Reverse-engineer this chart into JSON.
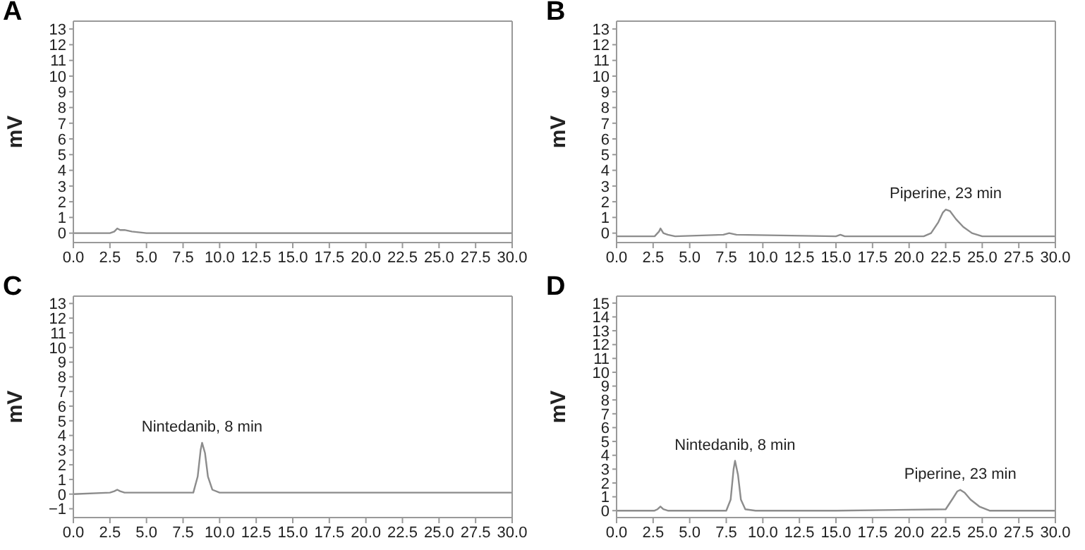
{
  "chart_data": [
    {
      "type": "line",
      "title": "A",
      "ylabel": "mV",
      "color": "#8c8c8c",
      "x": [
        0,
        2.5,
        2.8,
        3.0,
        3.2,
        3.5,
        4.0,
        5,
        8,
        10,
        15,
        20,
        25,
        30
      ],
      "values": [
        0.0,
        0.0,
        0.1,
        0.3,
        0.2,
        0.2,
        0.1,
        0.0,
        0.0,
        0.0,
        0.0,
        0.0,
        0.0,
        0.0
      ],
      "xlim": [
        0,
        30
      ],
      "xticks": [
        {
          "value": 0,
          "label": "0.0"
        },
        {
          "value": 2.5,
          "label": "2.5"
        },
        {
          "value": 5,
          "label": "5.0"
        },
        {
          "value": 7.5,
          "label": "7.5"
        },
        {
          "value": 10,
          "label": "10.0"
        },
        {
          "value": 12.5,
          "label": "12.5"
        },
        {
          "value": 15,
          "label": "15.0"
        },
        {
          "value": 17.5,
          "label": "17.5"
        },
        {
          "value": 20,
          "label": "20.0"
        },
        {
          "value": 22.5,
          "label": "22.5"
        },
        {
          "value": 25,
          "label": "25.0"
        },
        {
          "value": 27.5,
          "label": "27.5"
        },
        {
          "value": 30,
          "label": "30.0"
        }
      ],
      "ylim": [
        -0.6,
        13.5
      ],
      "yticks": [
        0,
        1,
        2,
        3,
        4,
        5,
        6,
        7,
        8,
        9,
        10,
        11,
        12,
        13
      ]
    },
    {
      "type": "line",
      "title": "B",
      "ylabel": "mV",
      "color": "#8c8c8c",
      "x": [
        0,
        2.6,
        2.9,
        3.0,
        3.2,
        3.5,
        4,
        7.3,
        7.7,
        8.2,
        15,
        15.3,
        15.6,
        21,
        21.5,
        22,
        22.3,
        22.5,
        22.8,
        23.2,
        23.7,
        24.3,
        25,
        30
      ],
      "values": [
        -0.2,
        -0.2,
        0.1,
        0.3,
        0.0,
        -0.1,
        -0.2,
        -0.1,
        0.0,
        -0.1,
        -0.2,
        -0.1,
        -0.2,
        -0.2,
        0.0,
        0.7,
        1.3,
        1.5,
        1.4,
        0.9,
        0.4,
        0.0,
        -0.2,
        -0.2
      ],
      "xlim": [
        0,
        30
      ],
      "xticks": [
        {
          "value": 0,
          "label": "0.0"
        },
        {
          "value": 2.5,
          "label": "2.5"
        },
        {
          "value": 5,
          "label": "5.0"
        },
        {
          "value": 7.5,
          "label": "7.5"
        },
        {
          "value": 10,
          "label": "10.0"
        },
        {
          "value": 12.5,
          "label": "12.5"
        },
        {
          "value": 15,
          "label": "15.0"
        },
        {
          "value": 17.5,
          "label": "17.5"
        },
        {
          "value": 20,
          "label": "20.0"
        },
        {
          "value": 22.5,
          "label": "22.5"
        },
        {
          "value": 25,
          "label": "25.0"
        },
        {
          "value": 27.5,
          "label": "27.5"
        },
        {
          "value": 30,
          "label": "30.0"
        }
      ],
      "ylim": [
        -0.6,
        13.5
      ],
      "yticks": [
        0,
        1,
        2,
        3,
        4,
        5,
        6,
        7,
        8,
        9,
        10,
        11,
        12,
        13
      ],
      "annotations": [
        {
          "text": "Piperine, 23 min",
          "x": 22.5,
          "y": 1.5
        }
      ]
    },
    {
      "type": "line",
      "title": "C",
      "ylabel": "mV",
      "color": "#8c8c8c",
      "x": [
        0,
        2.5,
        2.8,
        3.0,
        3.2,
        3.5,
        5,
        8.2,
        8.5,
        8.7,
        8.8,
        9.0,
        9.2,
        9.5,
        10,
        12,
        30
      ],
      "values": [
        0.0,
        0.1,
        0.2,
        0.3,
        0.2,
        0.1,
        0.1,
        0.1,
        1.2,
        3.0,
        3.5,
        2.8,
        1.2,
        0.3,
        0.1,
        0.1,
        0.1
      ],
      "xlim": [
        0,
        30
      ],
      "xticks": [
        {
          "value": 0,
          "label": "0.0"
        },
        {
          "value": 2.5,
          "label": "2.5"
        },
        {
          "value": 5,
          "label": "5.0"
        },
        {
          "value": 7.5,
          "label": "7.5"
        },
        {
          "value": 10,
          "label": "10.0"
        },
        {
          "value": 12.5,
          "label": "12.5"
        },
        {
          "value": 15,
          "label": "15.0"
        },
        {
          "value": 17.5,
          "label": "17.5"
        },
        {
          "value": 20,
          "label": "20.0"
        },
        {
          "value": 22.5,
          "label": "22.5"
        },
        {
          "value": 25,
          "label": "25.0"
        },
        {
          "value": 27.5,
          "label": "27.5"
        },
        {
          "value": 30,
          "label": "30.0"
        }
      ],
      "ylim": [
        -1.6,
        13.5
      ],
      "yticks": [
        {
          "value": -1,
          "label": "−1"
        },
        0,
        1,
        2,
        3,
        4,
        5,
        6,
        7,
        8,
        9,
        10,
        11,
        12,
        13
      ],
      "annotations": [
        {
          "text": "Nintedanib, 8 min",
          "x": 8.8,
          "y": 3.5
        }
      ]
    },
    {
      "type": "line",
      "title": "D",
      "ylabel": "mV",
      "color": "#8c8c8c",
      "x": [
        0,
        2.6,
        2.8,
        3.0,
        3.2,
        3.5,
        7.5,
        7.8,
        8.0,
        8.1,
        8.3,
        8.5,
        8.8,
        9.5,
        15,
        22.5,
        23,
        23.3,
        23.5,
        23.8,
        24.2,
        24.8,
        25.5,
        30
      ],
      "values": [
        0,
        0,
        0.1,
        0.3,
        0.1,
        0,
        0,
        0.8,
        3.0,
        3.6,
        2.6,
        0.8,
        0.1,
        0,
        0,
        0.1,
        0.9,
        1.4,
        1.5,
        1.3,
        0.8,
        0.3,
        0.0,
        0
      ],
      "xlim": [
        0,
        30
      ],
      "xticks": [
        {
          "value": 0,
          "label": "0.0"
        },
        {
          "value": 2.5,
          "label": "2.5"
        },
        {
          "value": 5,
          "label": "5.0"
        },
        {
          "value": 7.5,
          "label": "7.5"
        },
        {
          "value": 10,
          "label": "10.0"
        },
        {
          "value": 12.5,
          "label": "12.5"
        },
        {
          "value": 15,
          "label": "15.0"
        },
        {
          "value": 17.5,
          "label": "17.5"
        },
        {
          "value": 20,
          "label": "20.0"
        },
        {
          "value": 22.5,
          "label": "22.5"
        },
        {
          "value": 25,
          "label": "25.0"
        },
        {
          "value": 27.5,
          "label": "27.5"
        },
        {
          "value": 30,
          "label": "30.0"
        }
      ],
      "ylim": [
        -0.5,
        15.5
      ],
      "yticks": [
        0,
        1,
        2,
        3,
        4,
        5,
        6,
        7,
        8,
        9,
        10,
        11,
        12,
        13,
        14,
        15
      ],
      "annotations": [
        {
          "text": "Nintedanib, 8 min",
          "x": 8.1,
          "y": 3.6
        },
        {
          "text": "Piperine, 23 min",
          "x": 23.5,
          "y": 1.5
        }
      ]
    }
  ]
}
